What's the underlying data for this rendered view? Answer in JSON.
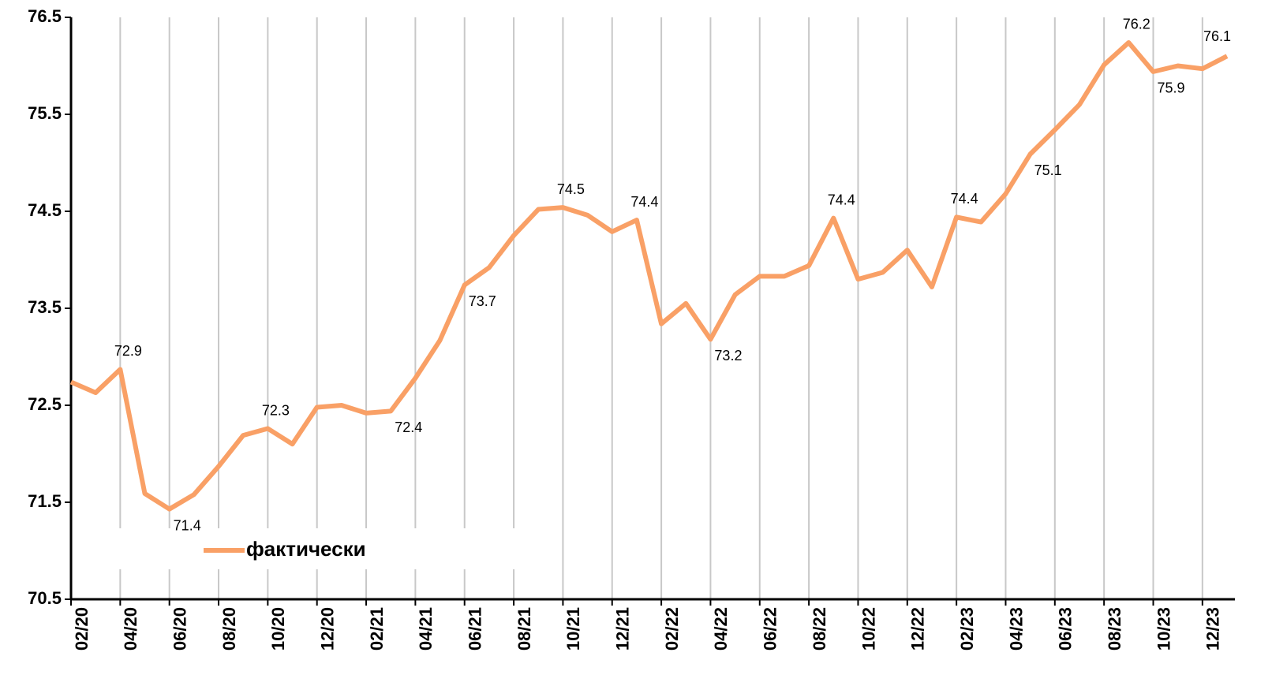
{
  "chart_data": {
    "type": "line",
    "legend_name": "фактически",
    "categories": [
      "02/20",
      null,
      "04/20",
      null,
      "06/20",
      null,
      "08/20",
      null,
      "10/20",
      null,
      "12/20",
      null,
      "02/21",
      null,
      "04/21",
      null,
      "06/21",
      null,
      "08/21",
      null,
      "10/21",
      null,
      "12/21",
      null,
      "02/22",
      null,
      "04/22",
      null,
      "06/22",
      null,
      "08/22",
      null,
      "10/22",
      null,
      "12/22",
      null,
      "02/23",
      null,
      "04/23",
      null,
      "06/23",
      null,
      "08/23",
      null,
      "10/23",
      null,
      "12/23",
      null
    ],
    "series": [
      {
        "name": "фактически",
        "color": "#f9a066",
        "values": [
          72.74,
          72.63,
          72.87,
          71.59,
          71.43,
          71.58,
          71.87,
          72.19,
          72.26,
          72.1,
          72.48,
          72.5,
          72.42,
          72.44,
          72.78,
          73.17,
          73.74,
          73.92,
          74.25,
          74.52,
          74.54,
          74.46,
          74.29,
          74.41,
          73.34,
          73.55,
          73.18,
          73.64,
          73.83,
          73.83,
          73.94,
          74.43,
          73.8,
          73.87,
          74.1,
          73.72,
          74.44,
          74.39,
          74.68,
          75.09,
          75.34,
          75.6,
          76.01,
          76.24,
          75.94,
          76.0,
          75.97,
          76.1
        ],
        "value_labels": [
          null,
          null,
          "72.9",
          null,
          "71.4",
          null,
          null,
          null,
          "72.3",
          null,
          null,
          null,
          null,
          "72.4",
          null,
          null,
          "73.7",
          null,
          null,
          null,
          "74.5",
          null,
          null,
          "74.4",
          null,
          null,
          "73.2",
          null,
          null,
          null,
          null,
          "74.4",
          null,
          null,
          null,
          null,
          "74.4",
          null,
          null,
          "75.1",
          null,
          null,
          null,
          "76.2",
          "75.9",
          null,
          null,
          "76.1"
        ]
      }
    ],
    "ylim": [
      70.5,
      76.5
    ],
    "yticks": [
      70.5,
      71.5,
      72.5,
      73.5,
      74.5,
      75.5,
      76.5
    ],
    "grid": "vertical",
    "legend": "lower left"
  }
}
